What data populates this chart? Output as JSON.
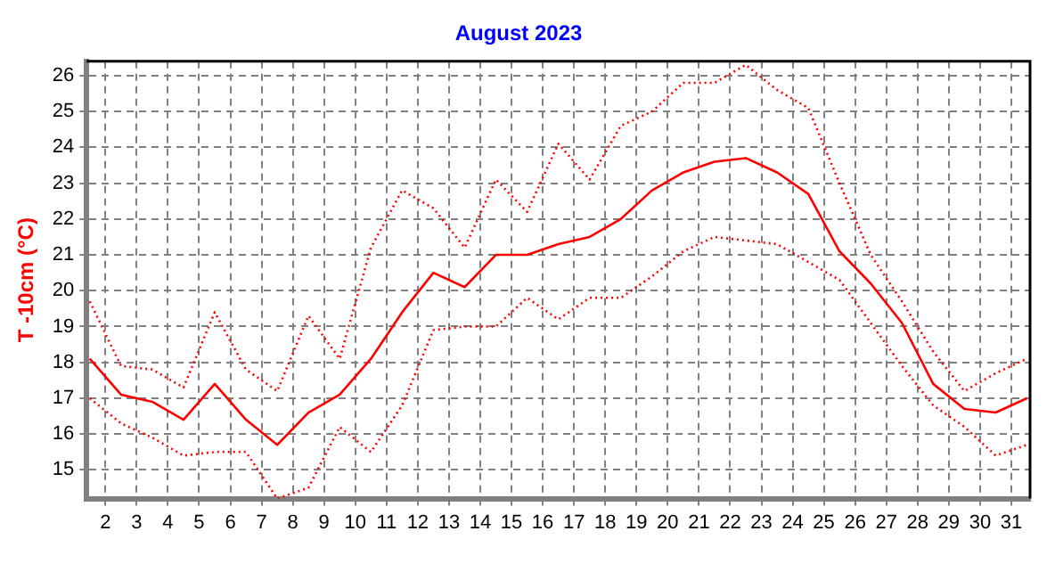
{
  "chart_data": {
    "type": "line",
    "title": "August 2023",
    "ylabel": "T -10cm (°C)",
    "x": [
      1.5,
      2.5,
      3.5,
      4.5,
      5.5,
      6.5,
      7.5,
      8.5,
      9.5,
      10.5,
      11.5,
      12.5,
      13.5,
      14.5,
      15.5,
      16.5,
      17.5,
      18.5,
      19.5,
      20.5,
      21.5,
      22.5,
      23.5,
      24.5,
      25.5,
      26.5,
      27.5,
      28.5,
      29.5,
      30.5,
      31.5
    ],
    "series": [
      {
        "color": "#ff0000",
        "line_style": "dotted",
        "values": [
          19.7,
          17.9,
          17.8,
          17.3,
          19.4,
          17.8,
          17.2,
          19.3,
          18.1,
          21.2,
          22.8,
          22.3,
          21.2,
          23.1,
          22.2,
          24.1,
          23.1,
          24.6,
          25.0,
          25.8,
          25.8,
          26.3,
          25.6,
          25.1,
          23.0,
          21.0,
          19.7,
          18.3,
          17.2,
          17.7,
          18.1
        ]
      },
      {
        "color": "#ff0000",
        "line_style": "solid",
        "values": [
          18.1,
          17.1,
          16.9,
          16.4,
          17.4,
          16.4,
          15.7,
          16.6,
          17.1,
          18.1,
          19.4,
          20.5,
          20.1,
          21.0,
          21.0,
          21.3,
          21.5,
          22.0,
          22.8,
          23.3,
          23.6,
          23.7,
          23.3,
          22.7,
          21.1,
          20.2,
          19.1,
          17.4,
          16.7,
          16.6,
          17.0
        ]
      },
      {
        "color": "#ff0000",
        "line_style": "dotted",
        "values": [
          17.0,
          16.3,
          15.9,
          15.4,
          15.5,
          15.5,
          14.2,
          14.5,
          16.2,
          15.5,
          16.8,
          18.9,
          19.0,
          19.0,
          19.8,
          19.2,
          19.8,
          19.8,
          20.4,
          21.1,
          21.5,
          21.4,
          21.3,
          20.8,
          20.3,
          19.1,
          17.9,
          16.8,
          16.2,
          15.4,
          15.7
        ]
      }
    ],
    "xlim": [
      1.4,
      31.6
    ],
    "xticks": [
      2,
      3,
      4,
      5,
      6,
      7,
      8,
      9,
      10,
      11,
      12,
      13,
      14,
      15,
      16,
      17,
      18,
      19,
      20,
      21,
      22,
      23,
      24,
      25,
      26,
      27,
      28,
      29,
      30,
      31
    ],
    "ylim": [
      14.2,
      26.4
    ],
    "yticks": [
      15,
      16,
      17,
      18,
      19,
      20,
      21,
      22,
      23,
      24,
      25,
      26
    ],
    "grid": true,
    "legend": false,
    "marker": "none"
  }
}
